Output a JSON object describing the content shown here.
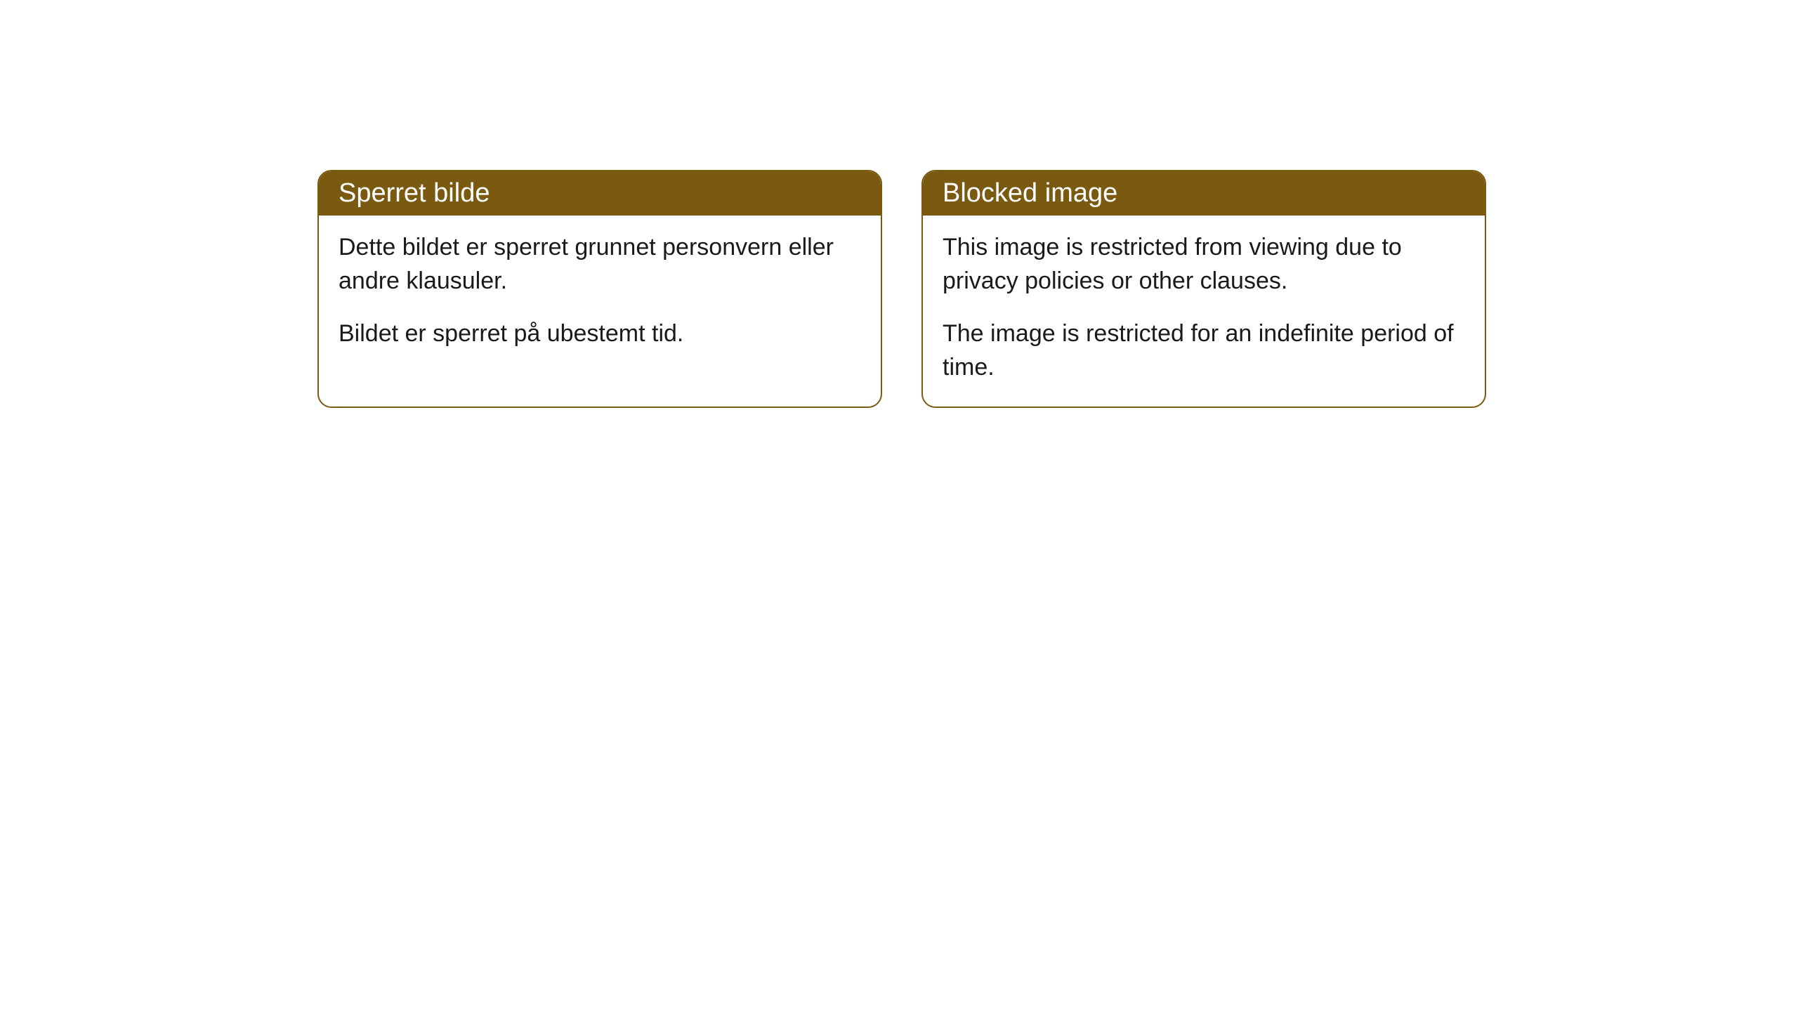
{
  "cards": [
    {
      "title": "Sperret bilde",
      "paragraph1": "Dette bildet er sperret grunnet personvern eller andre klausuler.",
      "paragraph2": "Bildet er sperret på ubestemt tid."
    },
    {
      "title": "Blocked image",
      "paragraph1": "This image is restricted from viewing due to privacy policies or other clauses.",
      "paragraph2": "The image is restricted for an indefinite period of time."
    }
  ],
  "style": {
    "header_background": "#7a5a11",
    "header_text_color": "#ffffff",
    "border_color": "#7a5a11",
    "body_background": "#ffffff",
    "body_text_color": "#1a1a1a",
    "border_radius": 20,
    "title_fontsize": 38,
    "body_fontsize": 34
  }
}
